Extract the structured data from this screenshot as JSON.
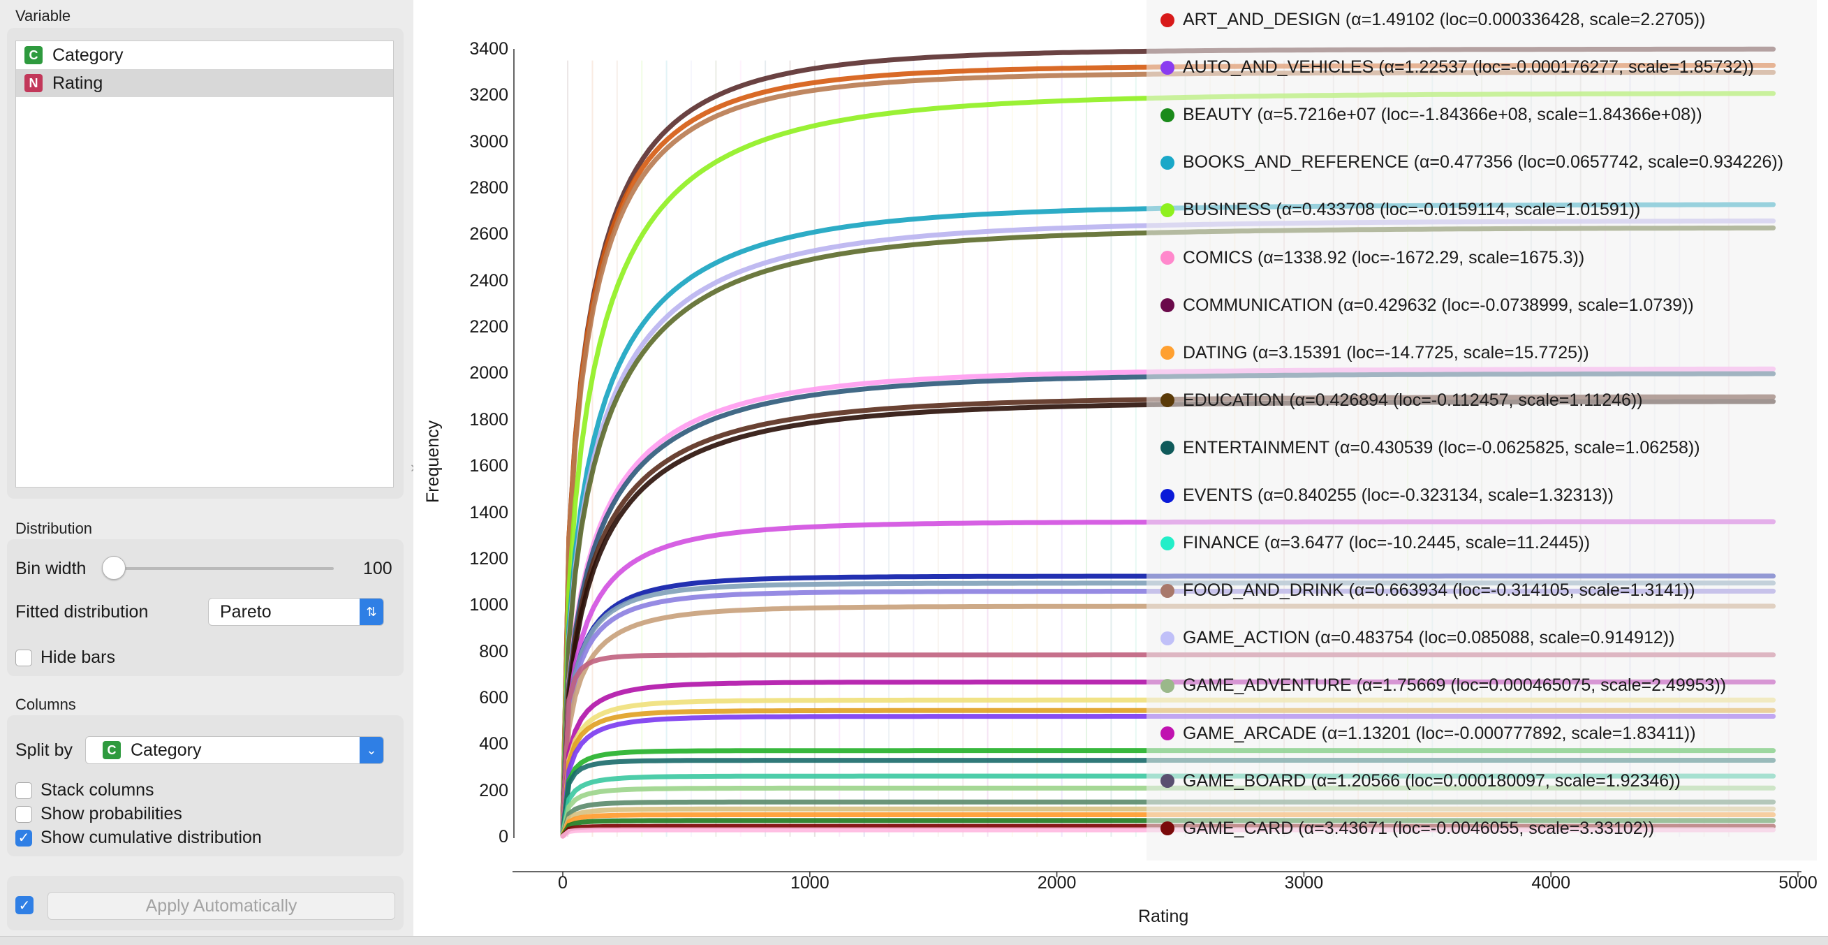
{
  "variable": {
    "title": "Variable",
    "items": [
      {
        "badge": "C",
        "color": "#2e9a3e",
        "label": "Category"
      },
      {
        "badge": "N",
        "color": "#c2385a",
        "label": "Rating"
      }
    ]
  },
  "distribution": {
    "title": "Distribution",
    "bin_width_label": "Bin width",
    "bin_width_value": "100",
    "fitted_label": "Fitted distribution",
    "fitted_value": "Pareto",
    "hide_bars_label": "Hide bars",
    "hide_bars": false
  },
  "columns": {
    "title": "Columns",
    "split_by_label": "Split by",
    "split_by_badge": "C",
    "split_by_value": "Category",
    "stack_label": "Stack columns",
    "stack": false,
    "prob_label": "Show probabilities",
    "prob": false,
    "cum_label": "Show cumulative distribution",
    "cum": true
  },
  "apply": {
    "label": "Apply Automatically",
    "checked": true
  },
  "chart_data": {
    "type": "line",
    "xlabel": "Rating",
    "ylabel": "Frequency",
    "xlim": [
      0,
      5000
    ],
    "ylim": [
      0,
      3400
    ],
    "xticks": [
      "0",
      "1000",
      "2000",
      "3000",
      "4000",
      "5000"
    ],
    "yticks": [
      "0",
      "200",
      "400",
      "600",
      "800",
      "1000",
      "1200",
      "1400",
      "1600",
      "1800",
      "2000",
      "2200",
      "2400",
      "2600",
      "2800",
      "3000",
      "3200",
      "3400"
    ],
    "legend_position": "top-right",
    "curves": [
      {
        "color": "#5a2e2e",
        "final": 3400,
        "k": 220
      },
      {
        "color": "#d55a10",
        "final": 3330,
        "k": 210
      },
      {
        "color": "#b87a50",
        "final": 3300,
        "k": 215
      },
      {
        "color": "#8fef1f",
        "final": 3210,
        "k": 300
      },
      {
        "color": "#16a3c0",
        "final": 2730,
        "k": 300
      },
      {
        "color": "#b9b3f0",
        "final": 2660,
        "k": 320
      },
      {
        "color": "#5c6a2a",
        "final": 2630,
        "k": 330
      },
      {
        "color": "#ff9bf0",
        "final": 2020,
        "k": 300
      },
      {
        "color": "#2d5a7a",
        "final": 2000,
        "k": 310
      },
      {
        "color": "#5a2d1d",
        "final": 1900,
        "k": 300
      },
      {
        "color": "#2a0f08",
        "final": 1880,
        "k": 320
      },
      {
        "color": "#d24fe0",
        "final": 1360,
        "k": 180
      },
      {
        "color": "#0a1aa8",
        "final": 1125,
        "k": 120
      },
      {
        "color": "#7fa0b8",
        "final": 1095,
        "k": 110
      },
      {
        "color": "#8b7ee0",
        "final": 1060,
        "k": 115
      },
      {
        "color": "#c8a07a",
        "final": 995,
        "k": 130
      },
      {
        "color": "#c0607e",
        "final": 785,
        "k": 30
      },
      {
        "color": "#b012a8",
        "final": 668,
        "k": 90
      },
      {
        "color": "#f0e07a",
        "final": 590,
        "k": 80
      },
      {
        "color": "#e0a020",
        "final": 545,
        "k": 70
      },
      {
        "color": "#7a38f0",
        "final": 520,
        "k": 85
      },
      {
        "color": "#22b028",
        "final": 372,
        "k": 50
      },
      {
        "color": "#1a6a6a",
        "final": 330,
        "k": 40
      },
      {
        "color": "#3ac8a0",
        "final": 262,
        "k": 60
      },
      {
        "color": "#9bd48a",
        "final": 210,
        "k": 60
      },
      {
        "color": "#5a8a6a",
        "final": 150,
        "k": 50
      },
      {
        "color": "#d6c080",
        "final": 120,
        "k": 50
      },
      {
        "color": "#ff9a2a",
        "final": 95,
        "k": 45
      },
      {
        "color": "#1f7a1f",
        "final": 70,
        "k": 40
      },
      {
        "color": "#7a0000",
        "final": 45,
        "k": 35
      },
      {
        "color": "#ffb8e0",
        "final": 30,
        "k": 30
      }
    ],
    "series": [
      {
        "name": "ART_AND_DESIGN (α=1.49102 (loc=0.000336428, scale=2.2705))",
        "color": "#d81a1a"
      },
      {
        "name": "AUTO_AND_VEHICLES (α=1.22537 (loc=-0.000176277, scale=1.85732))",
        "color": "#8a3cf0"
      },
      {
        "name": "BEAUTY (α=5.7216e+07 (loc=-1.84366e+08, scale=1.84366e+08))",
        "color": "#1a8a1a"
      },
      {
        "name": "BOOKS_AND_REFERENCE (α=0.477356 (loc=0.0657742, scale=0.934226))",
        "color": "#1aa8c8"
      },
      {
        "name": "BUSINESS (α=0.433708 (loc=-0.0159114, scale=1.01591))",
        "color": "#8ef01e"
      },
      {
        "name": "COMICS (α=1338.92 (loc=-1672.29, scale=1675.3))",
        "color": "#ff88cc"
      },
      {
        "name": "COMMUNICATION (α=0.429632 (loc=-0.0738999, scale=1.0739))",
        "color": "#6a0a4a"
      },
      {
        "name": "DATING (α=3.15391 (loc=-14.7725, scale=15.7725))",
        "color": "#ffa030"
      },
      {
        "name": "EDUCATION (α=0.426894 (loc=-0.112457, scale=1.11246))",
        "color": "#5a3a08"
      },
      {
        "name": "ENTERTAINMENT (α=0.430539 (loc=-0.0625825, scale=1.06258))",
        "color": "#0f5a5a"
      },
      {
        "name": "EVENTS (α=0.840255 (loc=-0.323134, scale=1.32313))",
        "color": "#0a1ad8"
      },
      {
        "name": "FINANCE (α=3.6477 (loc=-10.2445, scale=11.2445))",
        "color": "#22eec8"
      },
      {
        "name": "FOOD_AND_DRINK (α=0.663934 (loc=-0.314105, scale=1.3141))",
        "color": "#a8786a"
      },
      {
        "name": "GAME_ACTION (α=0.483754 (loc=0.085088, scale=0.914912))",
        "color": "#c0c0f8"
      },
      {
        "name": "GAME_ADVENTURE (α=1.75669 (loc=0.000465075, scale=2.49953))",
        "color": "#9ab88a"
      },
      {
        "name": "GAME_ARCADE (α=1.13201 (loc=-0.000777892, scale=1.83411))",
        "color": "#c012b0"
      },
      {
        "name": "GAME_BOARD (α=1.20566 (loc=0.000180097, scale=1.92346))",
        "color": "#5a5070"
      },
      {
        "name": "GAME_CARD (α=3.43671 (loc=-0.0046055, scale=3.33102))",
        "color": "#7a0a0a"
      }
    ]
  }
}
